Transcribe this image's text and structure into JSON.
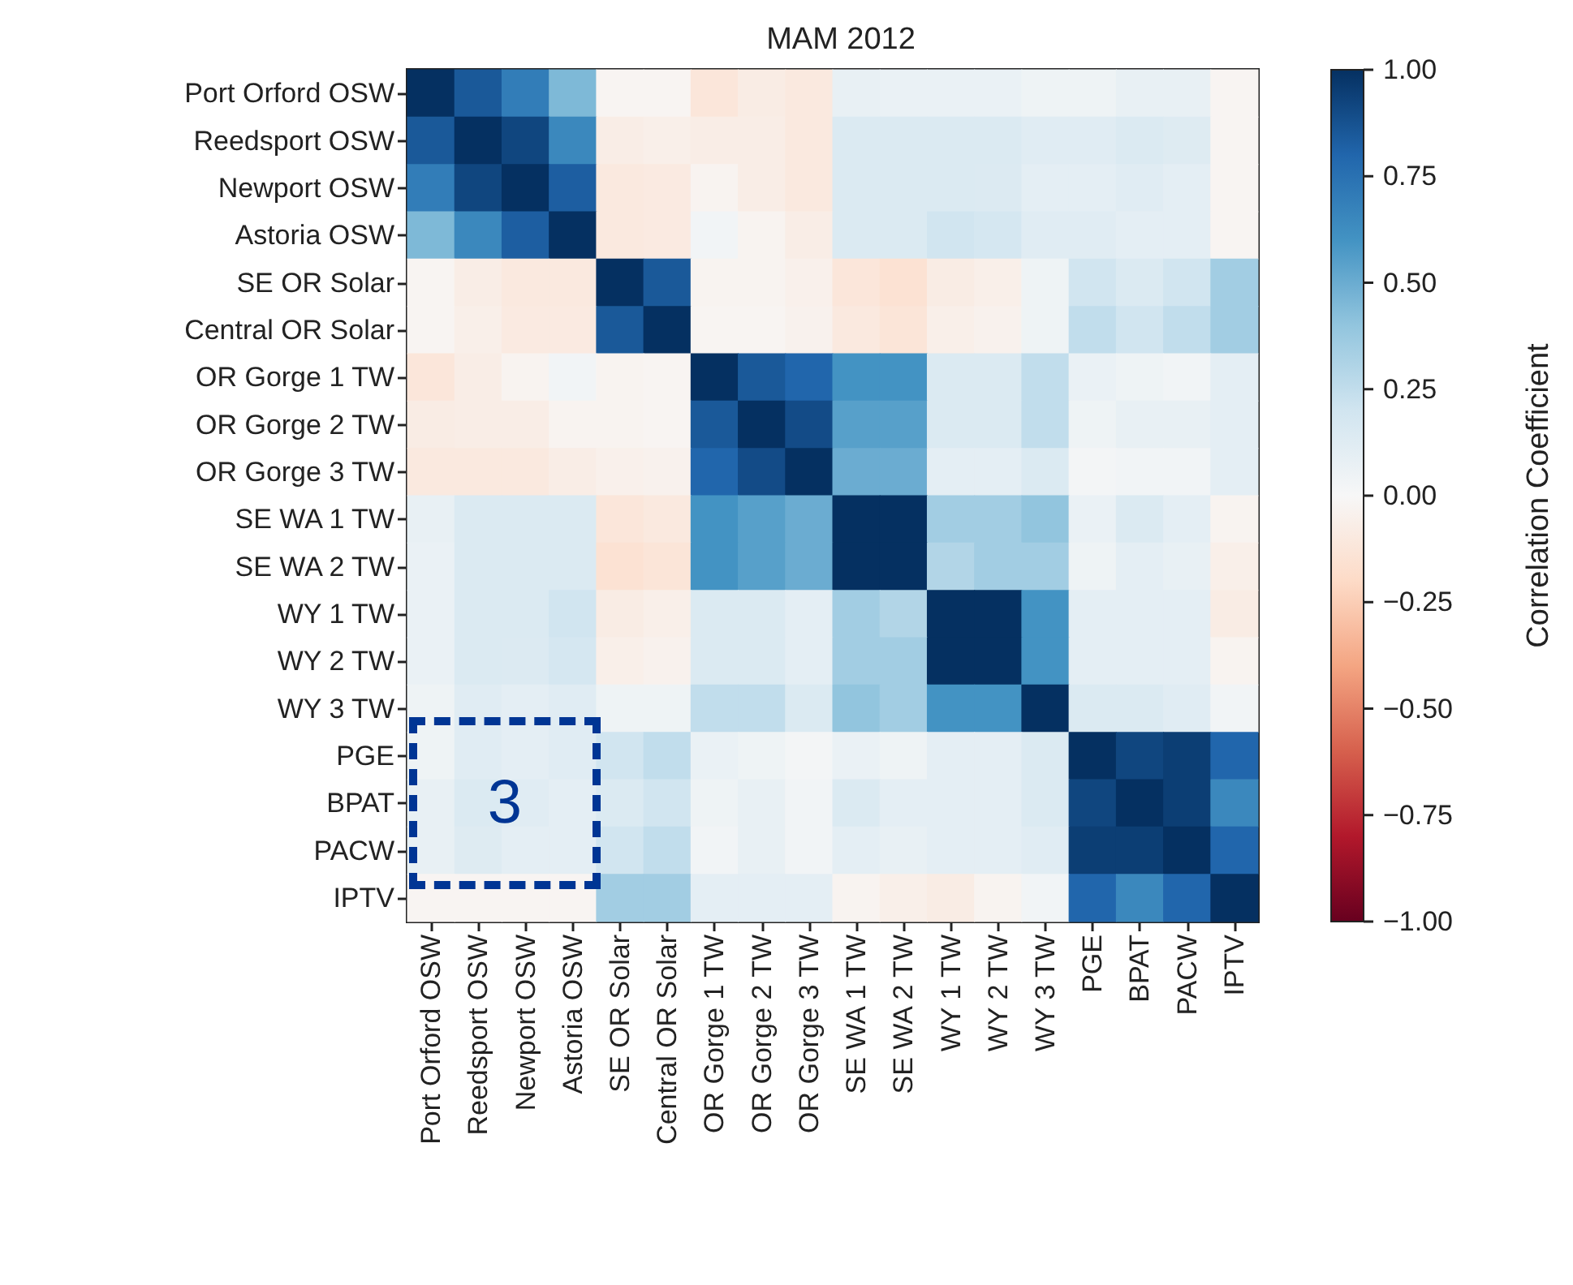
{
  "chart_data": {
    "type": "heatmap",
    "title": "MAM 2012",
    "clabel": "Correlation Coefficient",
    "categories": [
      "Port Orford OSW",
      "Reedsport OSW",
      "Newport OSW",
      "Astoria OSW",
      "SE OR Solar",
      "Central OR Solar",
      "OR Gorge 1 TW",
      "OR Gorge 2 TW",
      "OR Gorge 3 TW",
      "SE WA 1 TW",
      "SE WA 2 TW",
      "WY 1 TW",
      "WY 2 TW",
      "WY 3 TW",
      "PGE",
      "BPAT",
      "PACW",
      "IPTV"
    ],
    "y_categories": [
      "Port Orford OSW",
      "Reedsport OSW",
      "Newport OSW",
      "Astoria OSW",
      "SE OR Solar",
      "Central OR Solar",
      "OR Gorge 1 TW",
      "OR Gorge 2 TW",
      "OR Gorge 3 TW",
      "SE WA 1 TW",
      "SE WA 2 TW",
      "WY 1 TW",
      "WY 2 TW",
      "WY 3 TW",
      "PGE",
      "BPAT",
      "PACW",
      "IPTV"
    ],
    "cells": [
      [
        1,
        0.85,
        0.7,
        0.45,
        -0.02,
        -0.02,
        -0.12,
        -0.08,
        -0.1,
        0.08,
        0.07,
        0.07,
        0.07,
        0.05,
        0.05,
        0.08,
        0.08,
        -0.02
      ],
      [
        0.85,
        1,
        0.92,
        0.65,
        -0.07,
        -0.06,
        -0.07,
        -0.07,
        -0.1,
        0.15,
        0.15,
        0.15,
        0.15,
        0.12,
        0.12,
        0.15,
        0.13,
        -0.02
      ],
      [
        0.7,
        0.92,
        1,
        0.83,
        -0.1,
        -0.09,
        -0.03,
        -0.07,
        -0.1,
        0.15,
        0.15,
        0.15,
        0.14,
        0.1,
        0.1,
        0.12,
        0.1,
        -0.02
      ],
      [
        0.45,
        0.65,
        0.83,
        1,
        -0.1,
        -0.09,
        0.03,
        -0.03,
        -0.07,
        0.15,
        0.15,
        0.2,
        0.18,
        0.12,
        0.12,
        0.1,
        0.1,
        -0.02
      ],
      [
        -0.02,
        -0.07,
        -0.1,
        -0.1,
        1,
        0.85,
        -0.03,
        -0.03,
        -0.05,
        -0.12,
        -0.15,
        -0.08,
        -0.06,
        0.05,
        0.2,
        0.15,
        0.2,
        0.35
      ],
      [
        -0.02,
        -0.06,
        -0.09,
        -0.09,
        0.85,
        1,
        -0.02,
        -0.02,
        -0.04,
        -0.1,
        -0.13,
        -0.06,
        -0.04,
        0.05,
        0.25,
        0.2,
        0.25,
        0.35
      ],
      [
        -0.12,
        -0.07,
        -0.03,
        0.03,
        -0.03,
        -0.02,
        1,
        0.85,
        0.8,
        0.6,
        0.6,
        0.15,
        0.15,
        0.25,
        0.07,
        0.05,
        0.03,
        0.1
      ],
      [
        -0.08,
        -0.07,
        -0.07,
        -0.03,
        -0.03,
        -0.02,
        0.85,
        1,
        0.9,
        0.55,
        0.55,
        0.15,
        0.15,
        0.25,
        0.05,
        0.08,
        0.08,
        0.1
      ],
      [
        -0.1,
        -0.1,
        -0.1,
        -0.07,
        -0.05,
        -0.04,
        0.8,
        0.9,
        1,
        0.5,
        0.5,
        0.1,
        0.1,
        0.15,
        0.02,
        0.03,
        0.03,
        0.1
      ],
      [
        0.08,
        0.15,
        0.15,
        0.15,
        -0.12,
        -0.1,
        0.6,
        0.55,
        0.5,
        1,
        1,
        0.35,
        0.35,
        0.4,
        0.07,
        0.15,
        0.1,
        -0.03
      ],
      [
        0.07,
        0.15,
        0.15,
        0.15,
        -0.15,
        -0.13,
        0.6,
        0.55,
        0.5,
        1,
        1,
        0.3,
        0.35,
        0.35,
        0.05,
        0.1,
        0.08,
        -0.06
      ],
      [
        0.07,
        0.15,
        0.15,
        0.2,
        -0.08,
        -0.06,
        0.15,
        0.15,
        0.1,
        0.35,
        0.3,
        1,
        1,
        0.6,
        0.1,
        0.1,
        0.1,
        -0.08
      ],
      [
        0.07,
        0.15,
        0.14,
        0.18,
        -0.06,
        -0.04,
        0.15,
        0.15,
        0.1,
        0.35,
        0.35,
        1,
        1,
        0.6,
        0.1,
        0.1,
        0.1,
        -0.03
      ],
      [
        0.05,
        0.12,
        0.1,
        0.12,
        0.05,
        0.05,
        0.25,
        0.25,
        0.15,
        0.4,
        0.35,
        0.6,
        0.6,
        1,
        0.15,
        0.15,
        0.12,
        0.03
      ],
      [
        0.05,
        0.12,
        0.1,
        0.12,
        0.2,
        0.25,
        0.07,
        0.05,
        0.02,
        0.07,
        0.05,
        0.1,
        0.1,
        0.15,
        1,
        0.92,
        0.95,
        0.8
      ],
      [
        0.08,
        0.15,
        0.12,
        0.1,
        0.15,
        0.2,
        0.05,
        0.08,
        0.03,
        0.15,
        0.1,
        0.1,
        0.1,
        0.15,
        0.92,
        1,
        0.95,
        0.65
      ],
      [
        0.08,
        0.13,
        0.1,
        0.1,
        0.2,
        0.25,
        0.03,
        0.08,
        0.03,
        0.1,
        0.08,
        0.1,
        0.1,
        0.12,
        0.95,
        0.95,
        1,
        0.8
      ],
      [
        -0.02,
        -0.02,
        -0.02,
        -0.02,
        0.35,
        0.35,
        0.1,
        0.1,
        0.1,
        -0.03,
        -0.06,
        -0.08,
        -0.03,
        0.03,
        0.8,
        0.65,
        0.8,
        1
      ]
    ],
    "clim": [
      -1,
      1
    ],
    "cticks": [
      {
        "value": -1,
        "label": "−1.00"
      },
      {
        "value": -0.75,
        "label": "−0.75"
      },
      {
        "value": -0.5,
        "label": "−0.50"
      },
      {
        "value": -0.25,
        "label": "−0.25"
      },
      {
        "value": 0,
        "label": "0.00"
      },
      {
        "value": 0.25,
        "label": "0.25"
      },
      {
        "value": 0.5,
        "label": "0.50"
      },
      {
        "value": 0.75,
        "label": "0.75"
      },
      {
        "value": 1,
        "label": "1.00"
      }
    ],
    "annotations": [
      "3"
    ]
  }
}
